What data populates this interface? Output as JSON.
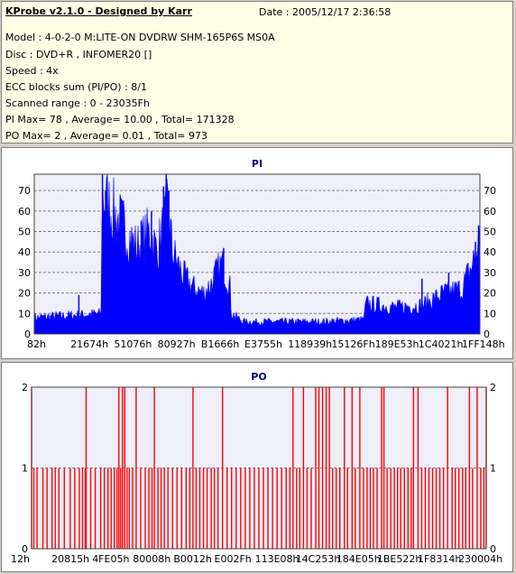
{
  "header": {
    "title": "KProbe v2.1.0 - Designed by Karr",
    "date": "Date : 2005/12/17 2:36:58",
    "lines": [
      "Model : 4-0-2-0 M:LITE-ON DVDRW SHM-165P6S MS0A",
      "Disc : DVD+R , INFOMER20 []",
      "Speed : 4x",
      "ECC blocks sum (PI/PO) : 8/1",
      "Scanned range : 0 - 23035Fh",
      "PI Max= 78 , Average= 10.00 , Total= 171328",
      "PO Max= 2 , Average= 0.01 , Total= 973"
    ]
  },
  "colors": {
    "pi": "#0000ff",
    "po": "#ff0000",
    "plot_bg": "#efeffa",
    "grid": "#808080"
  },
  "chart_data": [
    {
      "type": "area",
      "title": "PI",
      "ylim": [
        0,
        78
      ],
      "yticks": [
        0,
        10,
        20,
        30,
        40,
        50,
        60,
        70
      ],
      "xticklabels": [
        "82h",
        "21674h",
        "51076h",
        "80927h",
        "B1666h",
        "E3755h",
        "118939h",
        "15126Fh",
        "189E53h",
        "1C4021h",
        "1FF148h"
      ],
      "grid": true,
      "profile": [
        {
          "x": 0.0,
          "y": 8
        },
        {
          "x": 0.08,
          "y": 9
        },
        {
          "x": 0.15,
          "y": 10
        },
        {
          "x": 0.152,
          "y": 68
        },
        {
          "x": 0.175,
          "y": 60
        },
        {
          "x": 0.2,
          "y": 52
        },
        {
          "x": 0.23,
          "y": 42
        },
        {
          "x": 0.26,
          "y": 50
        },
        {
          "x": 0.275,
          "y": 40
        },
        {
          "x": 0.29,
          "y": 52
        },
        {
          "x": 0.3,
          "y": 62
        },
        {
          "x": 0.31,
          "y": 40
        },
        {
          "x": 0.335,
          "y": 28
        },
        {
          "x": 0.36,
          "y": 22
        },
        {
          "x": 0.38,
          "y": 20
        },
        {
          "x": 0.395,
          "y": 24
        },
        {
          "x": 0.41,
          "y": 30
        },
        {
          "x": 0.42,
          "y": 34
        },
        {
          "x": 0.43,
          "y": 30
        },
        {
          "x": 0.44,
          "y": 22
        },
        {
          "x": 0.442,
          "y": 10
        },
        {
          "x": 0.47,
          "y": 6
        },
        {
          "x": 0.56,
          "y": 6
        },
        {
          "x": 0.64,
          "y": 6
        },
        {
          "x": 0.74,
          "y": 7
        },
        {
          "x": 0.744,
          "y": 15
        },
        {
          "x": 0.81,
          "y": 13
        },
        {
          "x": 0.87,
          "y": 14
        },
        {
          "x": 0.92,
          "y": 20
        },
        {
          "x": 0.96,
          "y": 22
        },
        {
          "x": 0.985,
          "y": 35
        },
        {
          "x": 1.0,
          "y": 46
        }
      ],
      "spikes": [
        {
          "x": 0.1,
          "y": 19
        },
        {
          "x": 0.153,
          "y": 78
        },
        {
          "x": 0.16,
          "y": 70
        },
        {
          "x": 0.2,
          "y": 65
        },
        {
          "x": 0.24,
          "y": 55
        },
        {
          "x": 0.263,
          "y": 60
        },
        {
          "x": 0.29,
          "y": 72
        },
        {
          "x": 0.296,
          "y": 78
        },
        {
          "x": 0.302,
          "y": 70
        },
        {
          "x": 0.425,
          "y": 42
        },
        {
          "x": 0.87,
          "y": 27
        },
        {
          "x": 0.93,
          "y": 30
        },
        {
          "x": 0.99,
          "y": 45
        },
        {
          "x": 0.997,
          "y": 53
        }
      ]
    },
    {
      "type": "bar",
      "title": "PO",
      "ylim": [
        0,
        2
      ],
      "yticks": [
        0,
        1,
        2
      ],
      "xticklabels": [
        "12h",
        "20815h",
        "4FE05h",
        "80008h",
        "B0012h",
        "E002Fh",
        "113E08h",
        "14C253h",
        "184E05h",
        "1BE522h",
        "1F8314h",
        "230004h"
      ],
      "grid": true,
      "twos": [
        0.0,
        0.12,
        0.192,
        0.2,
        0.205,
        0.23,
        0.27,
        0.355,
        0.42,
        0.575,
        0.598,
        0.625,
        0.632,
        0.64,
        0.648,
        0.655,
        0.688,
        0.705,
        0.722,
        0.77,
        0.775,
        0.84,
        0.85,
        0.915,
        0.963,
        0.98,
        1.0
      ],
      "ones": [
        0.005,
        0.012,
        0.025,
        0.034,
        0.045,
        0.052,
        0.06,
        0.072,
        0.085,
        0.095,
        0.105,
        0.112,
        0.118,
        0.13,
        0.14,
        0.152,
        0.16,
        0.168,
        0.175,
        0.182,
        0.188,
        0.196,
        0.21,
        0.215,
        0.222,
        0.24,
        0.25,
        0.258,
        0.265,
        0.278,
        0.285,
        0.292,
        0.3,
        0.31,
        0.32,
        0.33,
        0.34,
        0.348,
        0.362,
        0.37,
        0.378,
        0.386,
        0.395,
        0.402,
        0.41,
        0.43,
        0.44,
        0.45,
        0.46,
        0.47,
        0.48,
        0.49,
        0.5,
        0.51,
        0.52,
        0.53,
        0.54,
        0.55,
        0.56,
        0.568,
        0.583,
        0.59,
        0.606,
        0.615,
        0.662,
        0.67,
        0.678,
        0.695,
        0.712,
        0.73,
        0.738,
        0.745,
        0.752,
        0.76,
        0.782,
        0.79,
        0.798,
        0.805,
        0.812,
        0.82,
        0.828,
        0.835,
        0.858,
        0.866,
        0.874,
        0.882,
        0.89,
        0.898,
        0.906,
        0.925,
        0.932,
        0.94,
        0.948,
        0.955,
        0.97,
        0.988,
        0.995
      ]
    }
  ]
}
